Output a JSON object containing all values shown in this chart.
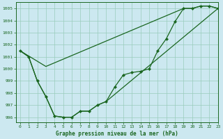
{
  "title": "Graphe pression niveau de la mer (hPa)",
  "bg_color": "#cce8f0",
  "grid_color": "#99ccbb",
  "line_color": "#1a6620",
  "xlim": [
    -0.5,
    23
  ],
  "ylim": [
    995.6,
    1005.5
  ],
  "yticks": [
    996,
    997,
    998,
    999,
    1000,
    1001,
    1002,
    1003,
    1004,
    1005
  ],
  "xticks": [
    0,
    1,
    2,
    3,
    4,
    5,
    6,
    7,
    8,
    9,
    10,
    11,
    12,
    13,
    14,
    15,
    16,
    17,
    18,
    19,
    20,
    21,
    22,
    23
  ],
  "main_x": [
    0,
    1,
    2,
    3,
    4,
    5,
    6,
    7,
    8,
    9,
    10,
    11,
    12,
    13,
    14,
    15,
    16,
    17,
    18,
    19,
    20,
    21,
    22,
    23
  ],
  "main_y": [
    1001.5,
    1001.0,
    999.0,
    997.7,
    996.1,
    996.0,
    996.0,
    996.5,
    996.5,
    997.0,
    997.3,
    998.5,
    999.5,
    999.7,
    999.8,
    1000.0,
    1001.5,
    1002.5,
    1003.9,
    1005.0,
    1005.0,
    1005.2,
    1005.2,
    1005.0
  ],
  "upper_x": [
    0,
    3,
    19,
    20,
    21,
    22,
    23
  ],
  "upper_y": [
    1001.5,
    1000.2,
    1005.0,
    1005.0,
    1005.2,
    1005.2,
    1005.0
  ],
  "lower_x": [
    0,
    1,
    2,
    3,
    4,
    5,
    6,
    7,
    8,
    9,
    10,
    23
  ],
  "lower_y": [
    1001.5,
    1001.0,
    999.0,
    997.7,
    996.1,
    996.0,
    996.0,
    996.5,
    996.5,
    997.0,
    997.3,
    1005.0
  ]
}
